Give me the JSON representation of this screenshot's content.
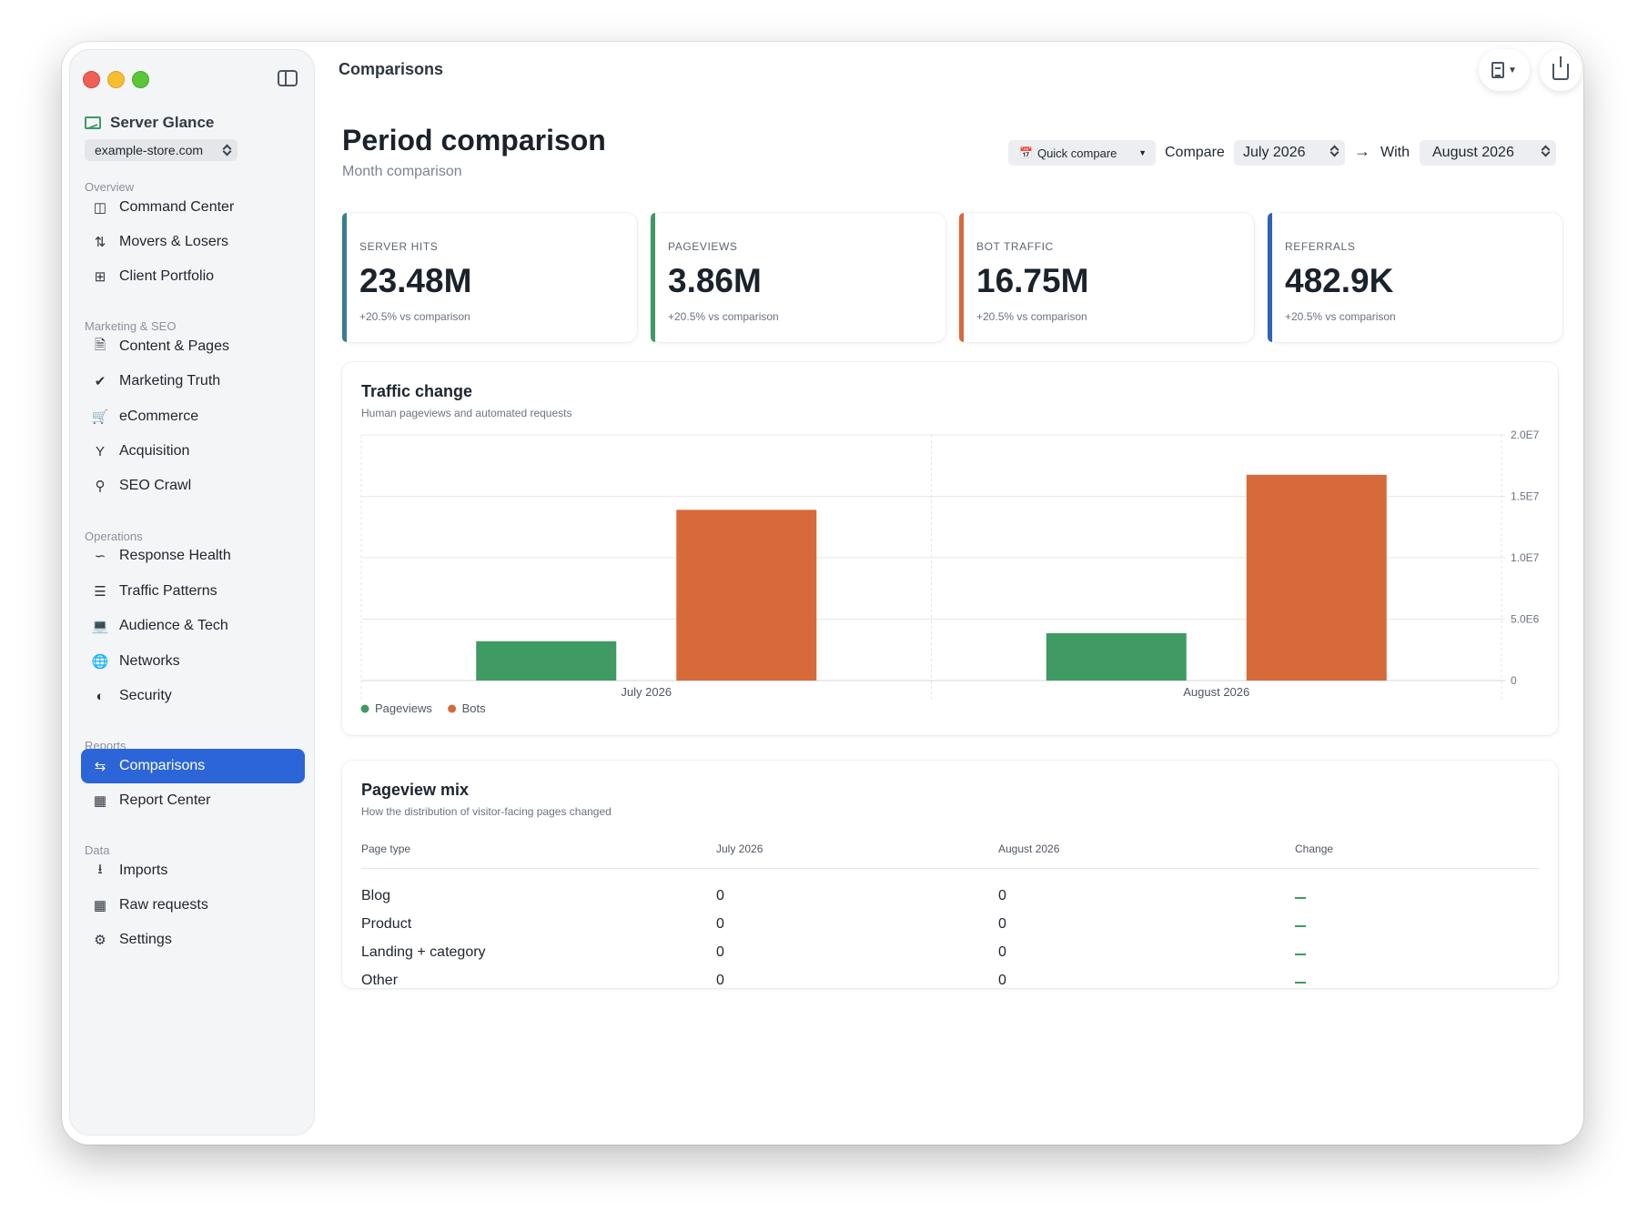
{
  "sidebar": {
    "brand": "Server Glance",
    "site": "example-store.com",
    "sections": {
      "overview": "Overview",
      "marketing": "Marketing & SEO",
      "operations": "Operations",
      "reports": "Reports",
      "data": "Data"
    },
    "items": {
      "command_center": "Command Center",
      "movers": "Movers & Losers",
      "client_portfolio": "Client Portfolio",
      "content_pages": "Content & Pages",
      "marketing_truth": "Marketing Truth",
      "ecommerce": "eCommerce",
      "acquisition": "Acquisition",
      "seo_crawl": "SEO Crawl",
      "response_health": "Response Health",
      "traffic_patterns": "Traffic Patterns",
      "audience_tech": "Audience & Tech",
      "networks": "Networks",
      "security": "Security",
      "comparisons": "Comparisons",
      "report_center": "Report Center",
      "imports": "Imports",
      "raw_requests": "Raw requests",
      "settings": "Settings"
    }
  },
  "header": {
    "title": "Comparisons"
  },
  "page": {
    "title": "Period comparison",
    "subtitle": "Month comparison",
    "quick_compare": "Quick compare",
    "compare_label": "Compare",
    "compare_value": "July 2026",
    "with_label": "With",
    "with_value": "August 2026"
  },
  "kpis": [
    {
      "label": "SERVER HITS",
      "value": "23.48M",
      "comparison": "+20.5% vs comparison",
      "color": "#3b7d8f"
    },
    {
      "label": "PAGEVIEWS",
      "value": "3.86M",
      "comparison": "+20.5% vs comparison",
      "color": "#3f9a64"
    },
    {
      "label": "BOT TRAFFIC",
      "value": "16.75M",
      "comparison": "+20.5% vs comparison",
      "color": "#d66a3a"
    },
    {
      "label": "REFERRALS",
      "value": "482.9K",
      "comparison": "+20.5% vs comparison",
      "color": "#3063b8"
    }
  ],
  "traffic_card": {
    "title": "Traffic change",
    "subtitle": "Human pageviews and automated requests"
  },
  "chart_data": {
    "type": "bar",
    "title": "Traffic change",
    "categories": [
      "July 2026",
      "August 2026"
    ],
    "series": [
      {
        "name": "Pageviews",
        "values": [
          3200000,
          3860000
        ],
        "color": "#3f9a64"
      },
      {
        "name": "Bots",
        "values": [
          13900000,
          16750000
        ],
        "color": "#d66a3a"
      }
    ],
    "ylim": [
      0,
      20000000
    ],
    "yticks": [
      0,
      5000000,
      10000000,
      15000000,
      20000000
    ],
    "ytick_labels": [
      "0",
      "5.0E6",
      "1.0E7",
      "1.5E7",
      "2.0E7"
    ],
    "y_axis_side": "right",
    "grid": true,
    "legend": "bottom-left"
  },
  "mix": {
    "title": "Pageview mix",
    "subtitle": "How the distribution of visitor-facing pages changed",
    "headers": [
      "Page type",
      "July 2026",
      "August 2026",
      "Change"
    ],
    "rows": [
      {
        "type": "Blog",
        "a": "0",
        "b": "0"
      },
      {
        "type": "Product",
        "a": "0",
        "b": "0"
      },
      {
        "type": "Landing + category",
        "a": "0",
        "b": "0"
      },
      {
        "type": "Other",
        "a": "0",
        "b": "0"
      }
    ]
  }
}
